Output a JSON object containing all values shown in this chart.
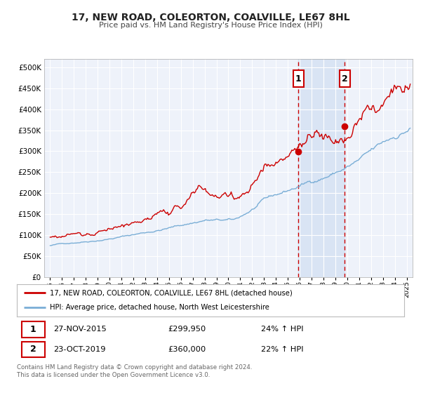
{
  "title": "17, NEW ROAD, COLEORTON, COALVILLE, LE67 8HL",
  "subtitle": "Price paid vs. HM Land Registry's House Price Index (HPI)",
  "background_color": "#ffffff",
  "plot_background_color": "#eef2fa",
  "grid_color": "#ffffff",
  "red_line_color": "#cc0000",
  "blue_line_color": "#7aaed6",
  "marker1_x": 2015.9,
  "marker1_y": 299950,
  "marker2_x": 2019.8,
  "marker2_y": 360000,
  "vline1_x": 2015.9,
  "vline2_x": 2019.8,
  "shade_start": 2015.9,
  "shade_end": 2019.8,
  "legend_red_label": "17, NEW ROAD, COLEORTON, COALVILLE, LE67 8HL (detached house)",
  "legend_blue_label": "HPI: Average price, detached house, North West Leicestershire",
  "table_row1_date": "27-NOV-2015",
  "table_row1_price": "£299,950",
  "table_row1_hpi": "24% ↑ HPI",
  "table_row2_date": "23-OCT-2019",
  "table_row2_price": "£360,000",
  "table_row2_hpi": "22% ↑ HPI",
  "footer": "Contains HM Land Registry data © Crown copyright and database right 2024.\nThis data is licensed under the Open Government Licence v3.0.",
  "ylim": [
    0,
    520000
  ],
  "yticks": [
    0,
    50000,
    100000,
    150000,
    200000,
    250000,
    300000,
    350000,
    400000,
    450000,
    500000
  ],
  "ytick_labels": [
    "£0",
    "£50K",
    "£100K",
    "£150K",
    "£200K",
    "£250K",
    "£300K",
    "£350K",
    "£400K",
    "£450K",
    "£500K"
  ],
  "xlim_start": 1994.5,
  "xlim_end": 2025.5,
  "xticks": [
    1995,
    1996,
    1997,
    1998,
    1999,
    2000,
    2001,
    2002,
    2003,
    2004,
    2005,
    2006,
    2007,
    2008,
    2009,
    2010,
    2011,
    2012,
    2013,
    2014,
    2015,
    2016,
    2017,
    2018,
    2019,
    2020,
    2021,
    2022,
    2023,
    2024,
    2025
  ]
}
